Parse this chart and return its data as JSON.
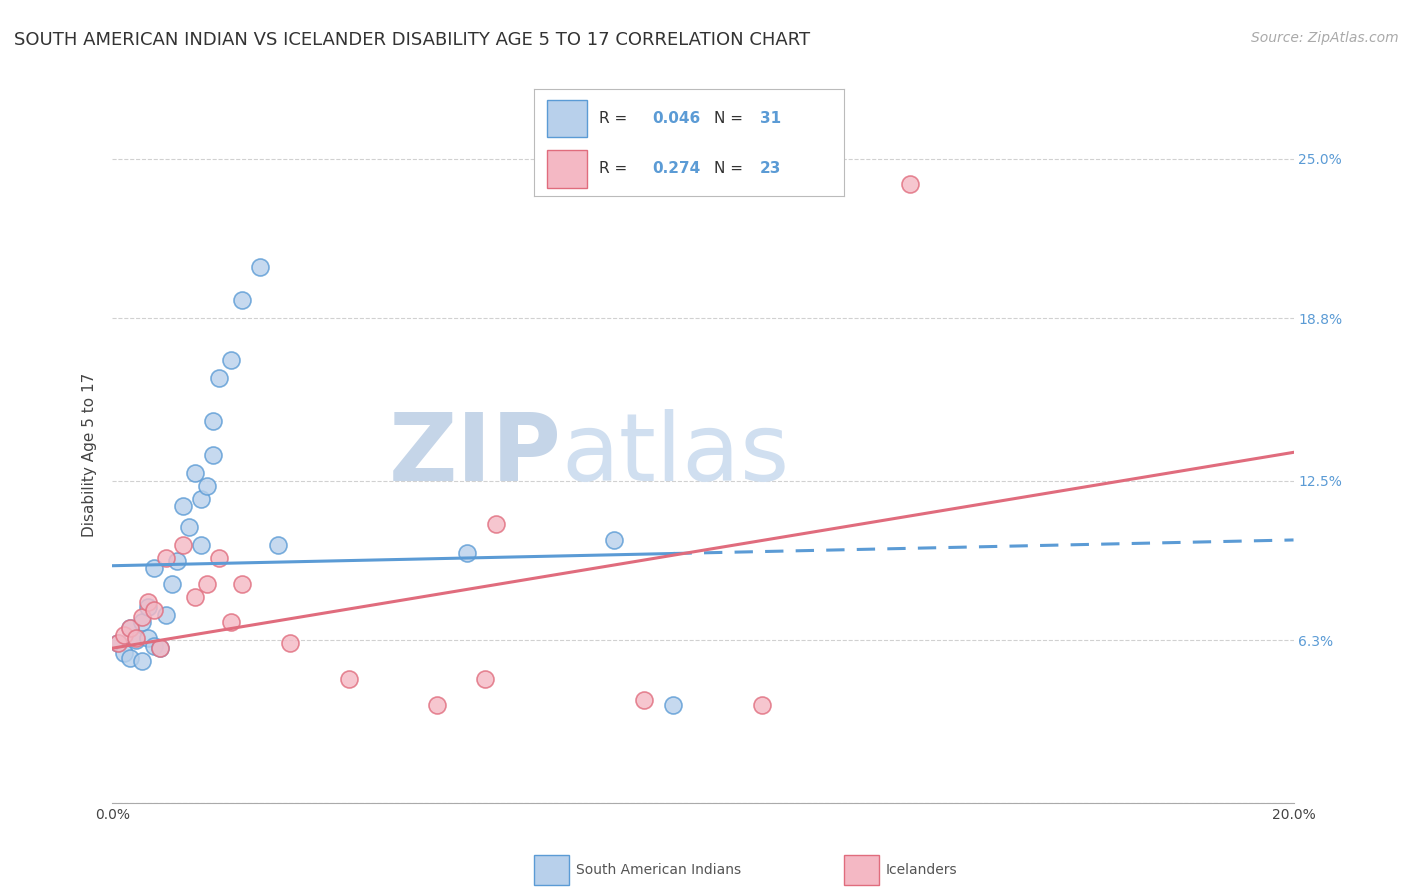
{
  "title": "SOUTH AMERICAN INDIAN VS ICELANDER DISABILITY AGE 5 TO 17 CORRELATION CHART",
  "source": "Source: ZipAtlas.com",
  "ylabel": "Disability Age 5 to 17",
  "xlim": [
    0.0,
    0.2
  ],
  "ylim": [
    0.0,
    0.27
  ],
  "xticks": [
    0.0,
    0.02,
    0.04,
    0.06,
    0.08,
    0.1,
    0.12,
    0.14,
    0.16,
    0.18,
    0.2
  ],
  "ytick_values": [
    0.0,
    0.063,
    0.125,
    0.188,
    0.25
  ],
  "ytick_labels_left": [
    "",
    "6.3%",
    "12.5%",
    "18.8%",
    "25.0%"
  ],
  "ytick_labels_right": [
    "",
    "6.3%",
    "12.5%",
    "18.8%",
    "25.0%"
  ],
  "watermark_zip": "ZIP",
  "watermark_atlas": "atlas",
  "blue_r": "0.046",
  "blue_n": "31",
  "pink_r": "0.274",
  "pink_n": "23",
  "blue_scatter_x": [
    0.001,
    0.002,
    0.003,
    0.003,
    0.004,
    0.005,
    0.005,
    0.006,
    0.006,
    0.007,
    0.007,
    0.008,
    0.009,
    0.01,
    0.011,
    0.012,
    0.013,
    0.014,
    0.015,
    0.015,
    0.016,
    0.017,
    0.017,
    0.018,
    0.02,
    0.022,
    0.025,
    0.028,
    0.06,
    0.085,
    0.095
  ],
  "blue_scatter_y": [
    0.062,
    0.058,
    0.056,
    0.068,
    0.063,
    0.07,
    0.055,
    0.076,
    0.064,
    0.091,
    0.061,
    0.06,
    0.073,
    0.085,
    0.094,
    0.115,
    0.107,
    0.128,
    0.1,
    0.118,
    0.123,
    0.135,
    0.148,
    0.165,
    0.172,
    0.195,
    0.208,
    0.1,
    0.097,
    0.102,
    0.038
  ],
  "pink_scatter_x": [
    0.001,
    0.002,
    0.003,
    0.004,
    0.005,
    0.006,
    0.007,
    0.008,
    0.009,
    0.012,
    0.014,
    0.016,
    0.018,
    0.02,
    0.022,
    0.03,
    0.04,
    0.055,
    0.063,
    0.065,
    0.09,
    0.11,
    0.135
  ],
  "pink_scatter_y": [
    0.062,
    0.065,
    0.068,
    0.064,
    0.072,
    0.078,
    0.075,
    0.06,
    0.095,
    0.1,
    0.08,
    0.085,
    0.095,
    0.07,
    0.085,
    0.062,
    0.048,
    0.038,
    0.048,
    0.108,
    0.04,
    0.038,
    0.24
  ],
  "blue_line_color": "#5b9bd5",
  "pink_line_color": "#e06c7d",
  "blue_scatter_fill": "#b8d0eb",
  "pink_scatter_fill": "#f4b8c4",
  "blue_line_start_y": 0.092,
  "blue_line_end_y": 0.102,
  "pink_line_start_y": 0.06,
  "pink_line_end_y": 0.136,
  "background_color": "#ffffff",
  "grid_color": "#cccccc",
  "title_fontsize": 13,
  "source_fontsize": 10,
  "label_fontsize": 11,
  "tick_fontsize": 10,
  "watermark_color_zip": "#c5d5e8",
  "watermark_color_atlas": "#d0dff0",
  "watermark_fontsize": 68
}
